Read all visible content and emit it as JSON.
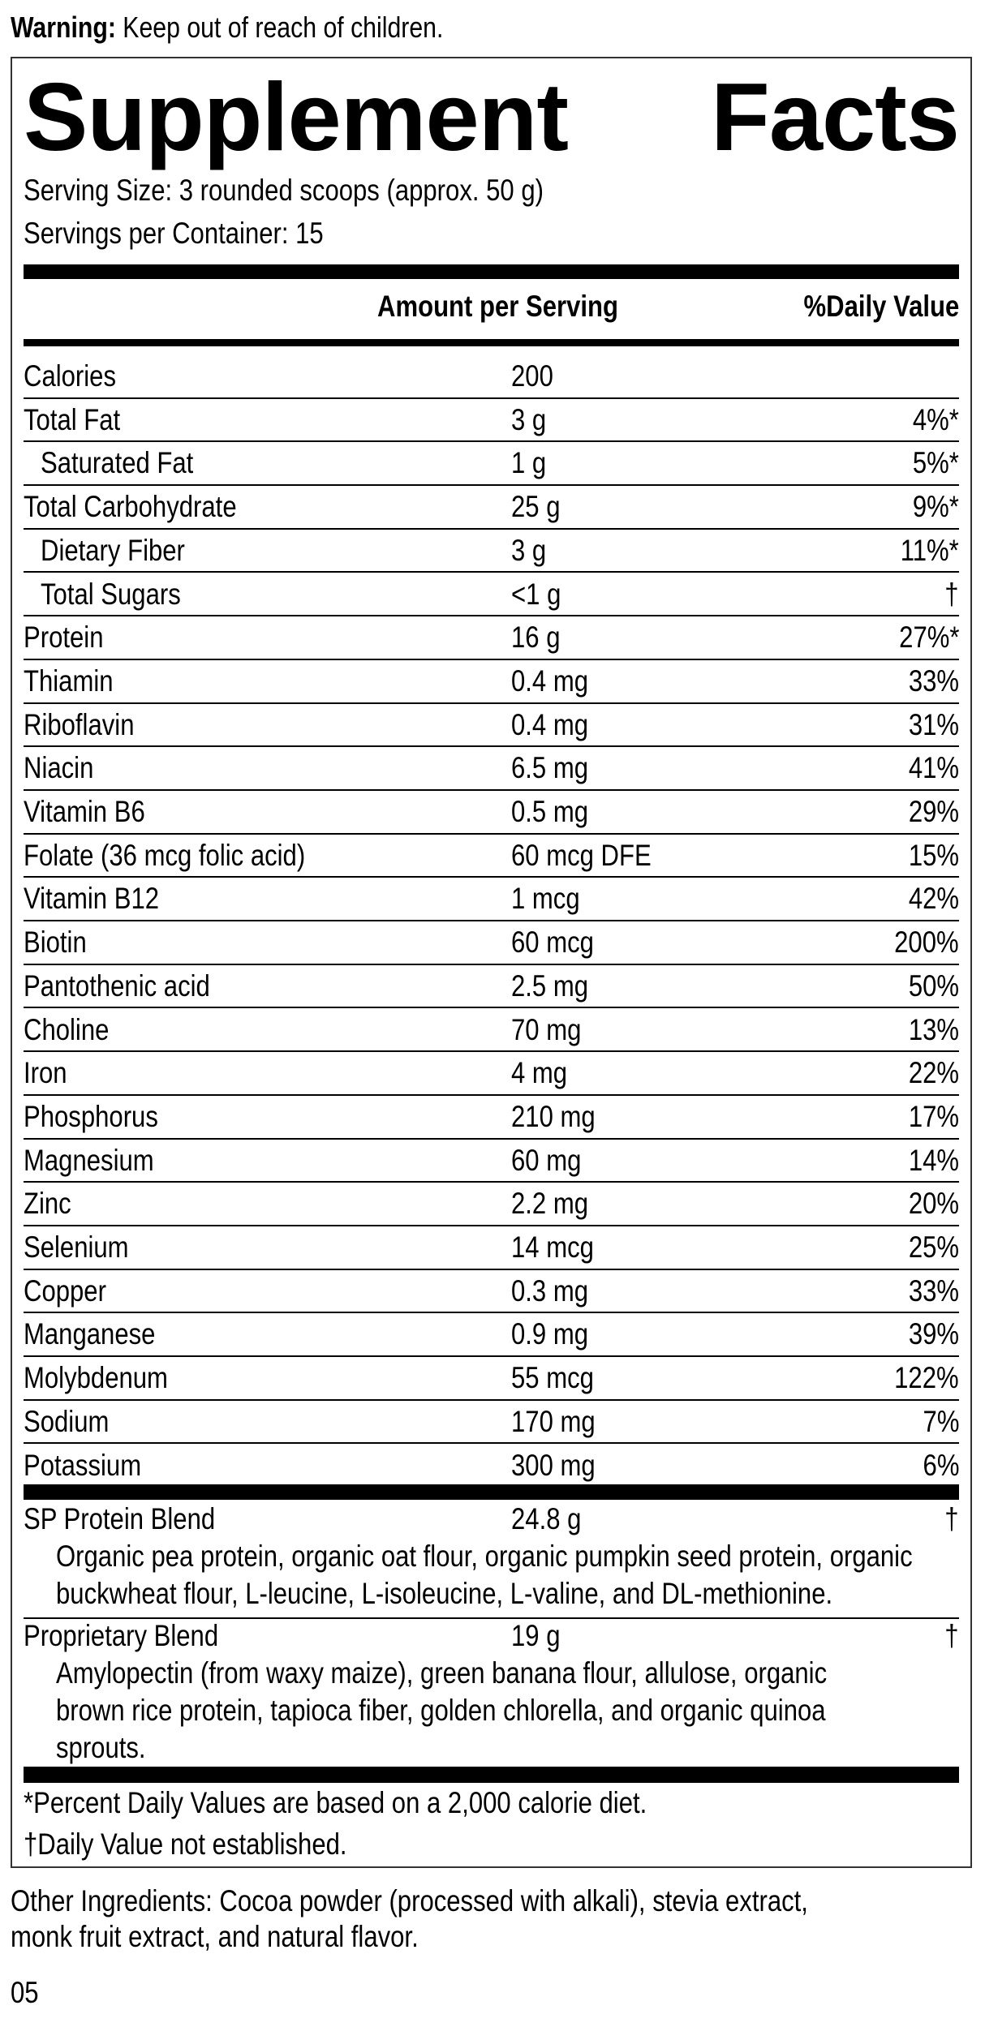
{
  "warning": {
    "label": "Warning:",
    "text": "Keep out of reach of children."
  },
  "title": {
    "word1": "Supplement",
    "word2": "Facts"
  },
  "serving_size": "Serving Size: 3 rounded scoops (approx. 50 g)",
  "servings_per_container": "Servings per Container: 15",
  "header": {
    "amount": "Amount per Serving",
    "dv": "%Daily Value"
  },
  "rows": [
    {
      "name": "Calories",
      "amount": "200",
      "dv": "",
      "indent": false
    },
    {
      "name": "Total Fat",
      "amount": "3 g",
      "dv": "4%*",
      "indent": false
    },
    {
      "name": "Saturated Fat",
      "amount": "1 g",
      "dv": "5%*",
      "indent": true
    },
    {
      "name": "Total Carbohydrate",
      "amount": "25 g",
      "dv": "9%*",
      "indent": false
    },
    {
      "name": "Dietary Fiber",
      "amount": "3 g",
      "dv": "11%*",
      "indent": true
    },
    {
      "name": "Total Sugars",
      "amount": "<1 g",
      "dv": "†",
      "indent": true
    },
    {
      "name": "Protein",
      "amount": "16 g",
      "dv": "27%*",
      "indent": false
    },
    {
      "name": "Thiamin",
      "amount": "0.4 mg",
      "dv": "33%",
      "indent": false
    },
    {
      "name": "Riboflavin",
      "amount": "0.4 mg",
      "dv": "31%",
      "indent": false
    },
    {
      "name": "Niacin",
      "amount": "6.5 mg",
      "dv": "41%",
      "indent": false
    },
    {
      "name": "Vitamin B6",
      "amount": "0.5 mg",
      "dv": "29%",
      "indent": false
    },
    {
      "name": "Folate (36 mcg folic acid)",
      "amount": "60 mcg DFE",
      "dv": "15%",
      "indent": false
    },
    {
      "name": "Vitamin B12",
      "amount": "1 mcg",
      "dv": "42%",
      "indent": false
    },
    {
      "name": "Biotin",
      "amount": "60 mcg",
      "dv": "200%",
      "indent": false
    },
    {
      "name": "Pantothenic acid",
      "amount": "2.5 mg",
      "dv": "50%",
      "indent": false
    },
    {
      "name": "Choline",
      "amount": "70 mg",
      "dv": "13%",
      "indent": false
    },
    {
      "name": "Iron",
      "amount": "4 mg",
      "dv": "22%",
      "indent": false
    },
    {
      "name": "Phosphorus",
      "amount": "210 mg",
      "dv": "17%",
      "indent": false
    },
    {
      "name": "Magnesium",
      "amount": "60 mg",
      "dv": "14%",
      "indent": false
    },
    {
      "name": "Zinc",
      "amount": "2.2 mg",
      "dv": "20%",
      "indent": false
    },
    {
      "name": "Selenium",
      "amount": "14 mcg",
      "dv": "25%",
      "indent": false
    },
    {
      "name": "Copper",
      "amount": "0.3 mg",
      "dv": "33%",
      "indent": false
    },
    {
      "name": "Manganese",
      "amount": "0.9 mg",
      "dv": "39%",
      "indent": false
    },
    {
      "name": "Molybdenum",
      "amount": "55 mcg",
      "dv": "122%",
      "indent": false
    },
    {
      "name": "Sodium",
      "amount": "170 mg",
      "dv": "7%",
      "indent": false
    },
    {
      "name": "Potassium",
      "amount": "300 mg",
      "dv": "6%",
      "indent": false
    }
  ],
  "blends": [
    {
      "name": "SP Protein Blend",
      "amount": "24.8 g",
      "dv": "†",
      "lines": [
        "Organic pea protein, organic oat flour, organic pumpkin seed protein, organic",
        "buckwheat flour, L-leucine, L-isoleucine, L-valine, and DL-methionine."
      ]
    },
    {
      "name": "Proprietary Blend",
      "amount": "19 g",
      "dv": "†",
      "lines": [
        "Amylopectin (from waxy maize), green banana flour, allulose, organic",
        "brown rice protein, tapioca fiber, golden chlorella, and organic quinoa",
        "sprouts."
      ]
    }
  ],
  "footnotes": [
    "*Percent Daily Values are based on a 2,000 calorie diet.",
    "†Daily Value not established."
  ],
  "other_ingredients": [
    "Other Ingredients: Cocoa powder (processed with alkali), stevia extract,",
    "monk fruit extract, and natural flavor."
  ],
  "code": "05"
}
